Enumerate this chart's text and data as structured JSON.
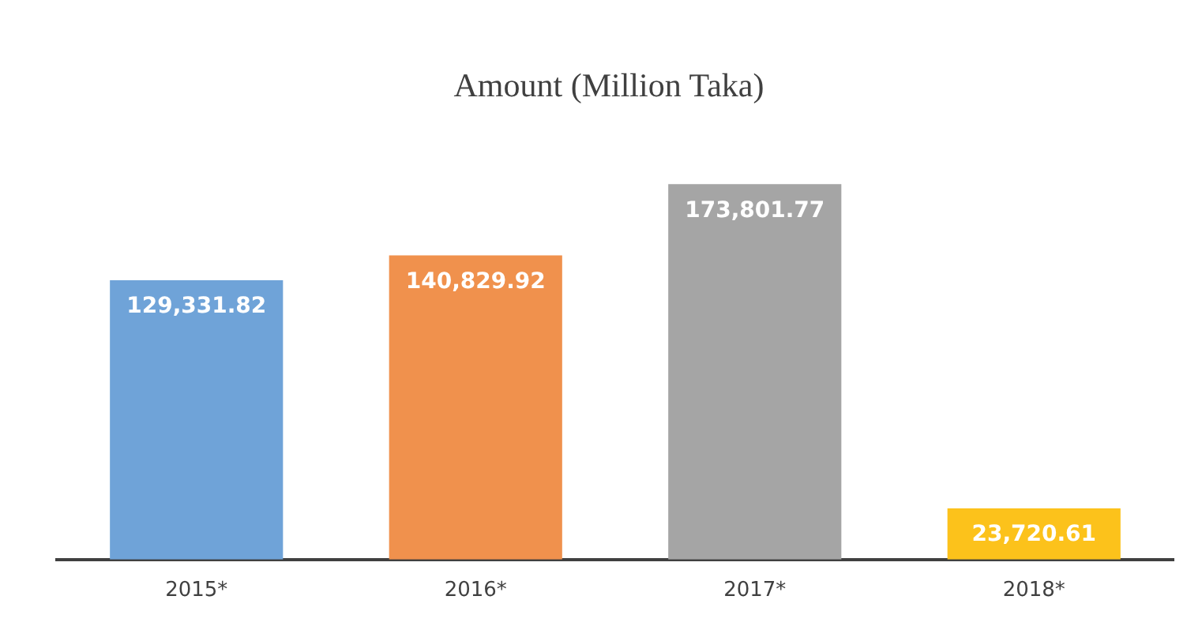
{
  "chart_data": {
    "type": "bar",
    "title": "Amount (Million Taka)",
    "categories": [
      "2015*",
      "2016*",
      "2017*",
      "2018*"
    ],
    "values": [
      129331.82,
      140829.92,
      173801.77,
      23720.61
    ],
    "colors": [
      "#6fa3d8",
      "#f0914d",
      "#a5a5a5",
      "#fcc21b"
    ],
    "value_labels": [
      "129,331.82",
      "140,829.92",
      "173,801.77",
      "23,720.61"
    ],
    "grid": false,
    "legend": false
  }
}
